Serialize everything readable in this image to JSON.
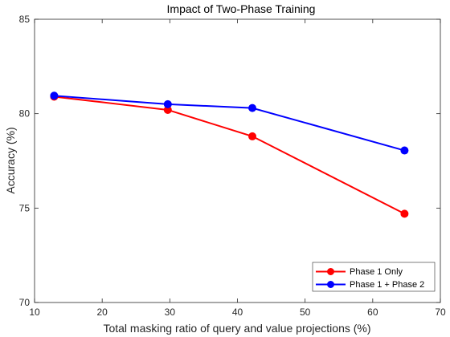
{
  "chart_data": {
    "type": "line",
    "title": "Impact of Two-Phase Training",
    "xlabel": "Total masking ratio of query and value projections (%)",
    "ylabel": "Accuracy (%)",
    "xlim": [
      10,
      70
    ],
    "ylim": [
      70,
      85
    ],
    "xticks": [
      10,
      20,
      30,
      40,
      50,
      60,
      70
    ],
    "yticks": [
      70,
      75,
      80,
      85
    ],
    "grid": false,
    "legend_position": "bottom-right",
    "series": [
      {
        "name": "Phase 1 Only",
        "color": "#ff0000",
        "x": [
          12.9,
          29.7,
          42.2,
          64.7
        ],
        "y": [
          80.9,
          80.2,
          78.8,
          74.7
        ]
      },
      {
        "name": "Phase 1 + Phase 2",
        "color": "#0000ff",
        "x": [
          12.9,
          29.7,
          42.2,
          64.7
        ],
        "y": [
          80.95,
          80.5,
          80.3,
          78.05
        ]
      }
    ]
  }
}
